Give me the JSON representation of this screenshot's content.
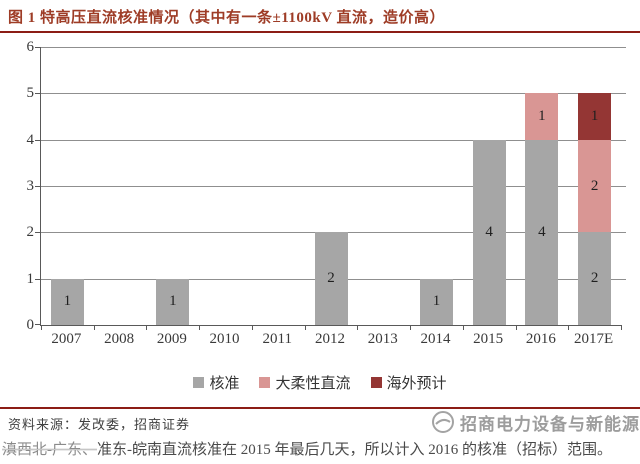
{
  "title": "图 1 特高压直流核准情况（其中有一条±1100kV 直流，造价高）",
  "chart_data": {
    "type": "bar",
    "stacked": true,
    "title": "特高压直流核准情况",
    "categories": [
      "2007",
      "2008",
      "2009",
      "2010",
      "2011",
      "2012",
      "2013",
      "2014",
      "2015",
      "2016",
      "2017E"
    ],
    "series": [
      {
        "name": "核准",
        "color": "#a6a6a6",
        "values": [
          1,
          0,
          1,
          0,
          0,
          2,
          0,
          1,
          4,
          4,
          2
        ]
      },
      {
        "name": "大柔性直流",
        "color": "#d99694",
        "values": [
          0,
          0,
          0,
          0,
          0,
          0,
          0,
          0,
          0,
          1,
          2
        ]
      },
      {
        "name": "海外预计",
        "color": "#943634",
        "values": [
          0,
          0,
          0,
          0,
          0,
          0,
          0,
          0,
          0,
          0,
          1
        ]
      }
    ],
    "xlabel": "",
    "ylabel": "",
    "ylim": [
      0,
      6
    ],
    "yticks": [
      0,
      1,
      2,
      3,
      4,
      5,
      6
    ],
    "grid": true,
    "bar_labels": true,
    "legend_position": "bottom"
  },
  "footer": {
    "source": "资料来源：发改委，招商证券",
    "note_smudged": "滇西北-广东、",
    "note_rest": "准东-皖南直流核准在 2015 年最后几天，所以计入 2016 的核准（招标）范围。"
  },
  "watermark": {
    "text": "招商电力设备与新能源"
  },
  "colors": {
    "title": "#9e3c26",
    "rule": "#8c1d15",
    "axis": "#595959",
    "grid": "#8f8f8f",
    "bar_gray": "#a6a6a6",
    "bar_pink": "#d99694",
    "bar_darkred": "#943634",
    "text": "#3a3a3a",
    "watermark": "#8c8c8c"
  }
}
